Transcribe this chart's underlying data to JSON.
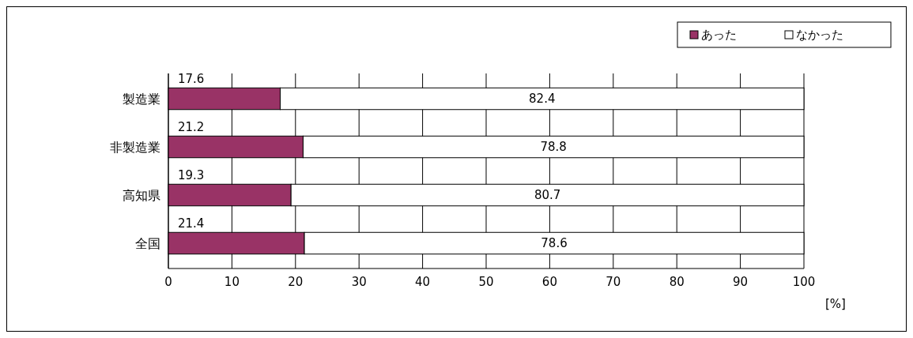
{
  "chart_data": {
    "type": "bar",
    "orientation": "horizontal",
    "stacked": true,
    "categories": [
      "製造業",
      "非製造業",
      "高知県",
      "全国"
    ],
    "series": [
      {
        "name": "あった",
        "color": "#993366",
        "values": [
          17.6,
          21.2,
          19.3,
          21.4
        ]
      },
      {
        "name": "なかった",
        "color": "#ffffff",
        "values": [
          82.4,
          78.8,
          80.7,
          78.6
        ]
      }
    ],
    "xlim": [
      0,
      100
    ],
    "xticks": [
      0,
      10,
      20,
      30,
      40,
      50,
      60,
      70,
      80,
      90,
      100
    ],
    "xlabel": "[%]",
    "grid": "x",
    "legend": "top right",
    "data_labels": true
  }
}
